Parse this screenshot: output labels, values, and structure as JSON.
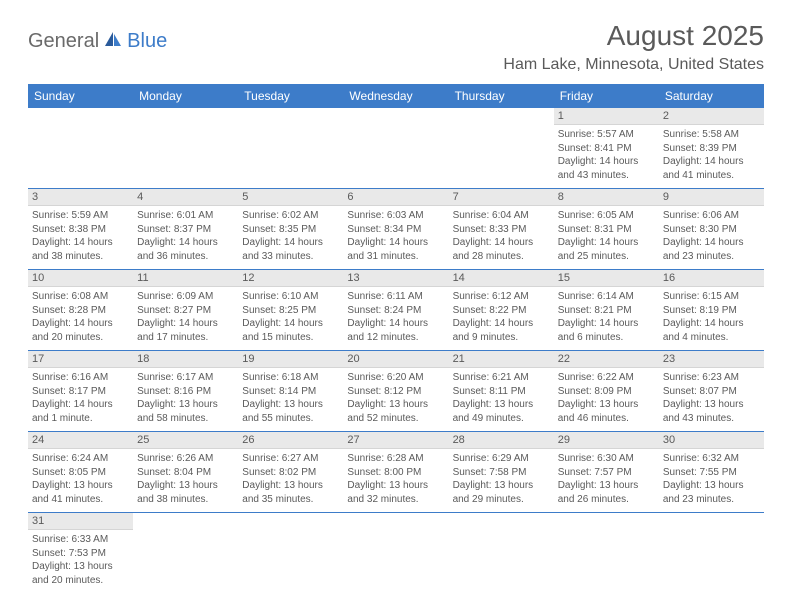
{
  "logo": {
    "general": "General",
    "blue": "Blue"
  },
  "title": "August 2025",
  "location": "Ham Lake, Minnesota, United States",
  "headers": [
    "Sunday",
    "Monday",
    "Tuesday",
    "Wednesday",
    "Thursday",
    "Friday",
    "Saturday"
  ],
  "colors": {
    "header_bg": "#3d7cc9",
    "header_text": "#ffffff",
    "text": "#5a5a5a",
    "daynum_bg": "#e9e9e9",
    "row_border": "#3d7cc9",
    "logo_general": "#6a6a6a",
    "logo_blue": "#3d7cc9"
  },
  "fonts": {
    "title_size": 28,
    "location_size": 16,
    "header_size": 12,
    "daynum_size": 11,
    "body_size": 10
  },
  "weeks": [
    [
      {
        "n": "",
        "sr": "",
        "ss": "",
        "dl": ""
      },
      {
        "n": "",
        "sr": "",
        "ss": "",
        "dl": ""
      },
      {
        "n": "",
        "sr": "",
        "ss": "",
        "dl": ""
      },
      {
        "n": "",
        "sr": "",
        "ss": "",
        "dl": ""
      },
      {
        "n": "",
        "sr": "",
        "ss": "",
        "dl": ""
      },
      {
        "n": "1",
        "sr": "Sunrise: 5:57 AM",
        "ss": "Sunset: 8:41 PM",
        "dl": "Daylight: 14 hours and 43 minutes."
      },
      {
        "n": "2",
        "sr": "Sunrise: 5:58 AM",
        "ss": "Sunset: 8:39 PM",
        "dl": "Daylight: 14 hours and 41 minutes."
      }
    ],
    [
      {
        "n": "3",
        "sr": "Sunrise: 5:59 AM",
        "ss": "Sunset: 8:38 PM",
        "dl": "Daylight: 14 hours and 38 minutes."
      },
      {
        "n": "4",
        "sr": "Sunrise: 6:01 AM",
        "ss": "Sunset: 8:37 PM",
        "dl": "Daylight: 14 hours and 36 minutes."
      },
      {
        "n": "5",
        "sr": "Sunrise: 6:02 AM",
        "ss": "Sunset: 8:35 PM",
        "dl": "Daylight: 14 hours and 33 minutes."
      },
      {
        "n": "6",
        "sr": "Sunrise: 6:03 AM",
        "ss": "Sunset: 8:34 PM",
        "dl": "Daylight: 14 hours and 31 minutes."
      },
      {
        "n": "7",
        "sr": "Sunrise: 6:04 AM",
        "ss": "Sunset: 8:33 PM",
        "dl": "Daylight: 14 hours and 28 minutes."
      },
      {
        "n": "8",
        "sr": "Sunrise: 6:05 AM",
        "ss": "Sunset: 8:31 PM",
        "dl": "Daylight: 14 hours and 25 minutes."
      },
      {
        "n": "9",
        "sr": "Sunrise: 6:06 AM",
        "ss": "Sunset: 8:30 PM",
        "dl": "Daylight: 14 hours and 23 minutes."
      }
    ],
    [
      {
        "n": "10",
        "sr": "Sunrise: 6:08 AM",
        "ss": "Sunset: 8:28 PM",
        "dl": "Daylight: 14 hours and 20 minutes."
      },
      {
        "n": "11",
        "sr": "Sunrise: 6:09 AM",
        "ss": "Sunset: 8:27 PM",
        "dl": "Daylight: 14 hours and 17 minutes."
      },
      {
        "n": "12",
        "sr": "Sunrise: 6:10 AM",
        "ss": "Sunset: 8:25 PM",
        "dl": "Daylight: 14 hours and 15 minutes."
      },
      {
        "n": "13",
        "sr": "Sunrise: 6:11 AM",
        "ss": "Sunset: 8:24 PM",
        "dl": "Daylight: 14 hours and 12 minutes."
      },
      {
        "n": "14",
        "sr": "Sunrise: 6:12 AM",
        "ss": "Sunset: 8:22 PM",
        "dl": "Daylight: 14 hours and 9 minutes."
      },
      {
        "n": "15",
        "sr": "Sunrise: 6:14 AM",
        "ss": "Sunset: 8:21 PM",
        "dl": "Daylight: 14 hours and 6 minutes."
      },
      {
        "n": "16",
        "sr": "Sunrise: 6:15 AM",
        "ss": "Sunset: 8:19 PM",
        "dl": "Daylight: 14 hours and 4 minutes."
      }
    ],
    [
      {
        "n": "17",
        "sr": "Sunrise: 6:16 AM",
        "ss": "Sunset: 8:17 PM",
        "dl": "Daylight: 14 hours and 1 minute."
      },
      {
        "n": "18",
        "sr": "Sunrise: 6:17 AM",
        "ss": "Sunset: 8:16 PM",
        "dl": "Daylight: 13 hours and 58 minutes."
      },
      {
        "n": "19",
        "sr": "Sunrise: 6:18 AM",
        "ss": "Sunset: 8:14 PM",
        "dl": "Daylight: 13 hours and 55 minutes."
      },
      {
        "n": "20",
        "sr": "Sunrise: 6:20 AM",
        "ss": "Sunset: 8:12 PM",
        "dl": "Daylight: 13 hours and 52 minutes."
      },
      {
        "n": "21",
        "sr": "Sunrise: 6:21 AM",
        "ss": "Sunset: 8:11 PM",
        "dl": "Daylight: 13 hours and 49 minutes."
      },
      {
        "n": "22",
        "sr": "Sunrise: 6:22 AM",
        "ss": "Sunset: 8:09 PM",
        "dl": "Daylight: 13 hours and 46 minutes."
      },
      {
        "n": "23",
        "sr": "Sunrise: 6:23 AM",
        "ss": "Sunset: 8:07 PM",
        "dl": "Daylight: 13 hours and 43 minutes."
      }
    ],
    [
      {
        "n": "24",
        "sr": "Sunrise: 6:24 AM",
        "ss": "Sunset: 8:05 PM",
        "dl": "Daylight: 13 hours and 41 minutes."
      },
      {
        "n": "25",
        "sr": "Sunrise: 6:26 AM",
        "ss": "Sunset: 8:04 PM",
        "dl": "Daylight: 13 hours and 38 minutes."
      },
      {
        "n": "26",
        "sr": "Sunrise: 6:27 AM",
        "ss": "Sunset: 8:02 PM",
        "dl": "Daylight: 13 hours and 35 minutes."
      },
      {
        "n": "27",
        "sr": "Sunrise: 6:28 AM",
        "ss": "Sunset: 8:00 PM",
        "dl": "Daylight: 13 hours and 32 minutes."
      },
      {
        "n": "28",
        "sr": "Sunrise: 6:29 AM",
        "ss": "Sunset: 7:58 PM",
        "dl": "Daylight: 13 hours and 29 minutes."
      },
      {
        "n": "29",
        "sr": "Sunrise: 6:30 AM",
        "ss": "Sunset: 7:57 PM",
        "dl": "Daylight: 13 hours and 26 minutes."
      },
      {
        "n": "30",
        "sr": "Sunrise: 6:32 AM",
        "ss": "Sunset: 7:55 PM",
        "dl": "Daylight: 13 hours and 23 minutes."
      }
    ],
    [
      {
        "n": "31",
        "sr": "Sunrise: 6:33 AM",
        "ss": "Sunset: 7:53 PM",
        "dl": "Daylight: 13 hours and 20 minutes."
      },
      {
        "n": "",
        "sr": "",
        "ss": "",
        "dl": ""
      },
      {
        "n": "",
        "sr": "",
        "ss": "",
        "dl": ""
      },
      {
        "n": "",
        "sr": "",
        "ss": "",
        "dl": ""
      },
      {
        "n": "",
        "sr": "",
        "ss": "",
        "dl": ""
      },
      {
        "n": "",
        "sr": "",
        "ss": "",
        "dl": ""
      },
      {
        "n": "",
        "sr": "",
        "ss": "",
        "dl": ""
      }
    ]
  ]
}
